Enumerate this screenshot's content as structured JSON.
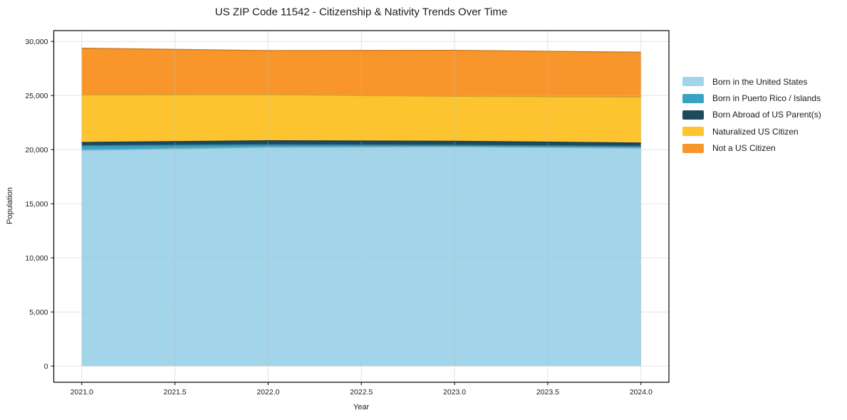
{
  "chart_data": {
    "type": "area",
    "stacked": true,
    "title": "US ZIP Code 11542 - Citizenship & Nativity Trends Over Time",
    "xlabel": "Year",
    "ylabel": "Population",
    "x": [
      2021,
      2022,
      2023,
      2024
    ],
    "series": [
      {
        "name": "Born in the United States",
        "color": "#a2d4ea",
        "values": [
          19950,
          20220,
          20260,
          20140
        ]
      },
      {
        "name": "Born in Puerto Rico / Islands",
        "color": "#3aa3c4",
        "values": [
          400,
          225,
          135,
          150
        ]
      },
      {
        "name": "Born Abroad of US Parent(s)",
        "color": "#1f4a5e",
        "values": [
          310,
          370,
          375,
          310
        ]
      },
      {
        "name": "Naturalized US Citizen",
        "color": "#fdc42f",
        "values": [
          4410,
          4275,
          4165,
          4270
        ]
      },
      {
        "name": "Not a US Citizen",
        "color": "#f8962b",
        "values": [
          4300,
          4060,
          4240,
          4130
        ]
      }
    ],
    "xticks": [
      2021.0,
      2021.5,
      2022.0,
      2022.5,
      2023.0,
      2023.5,
      2024.0
    ],
    "yticks": [
      0,
      5000,
      10000,
      15000,
      20000,
      25000,
      30000
    ],
    "xlim": [
      2020.85,
      2024.15
    ],
    "ylim": [
      -1500,
      31000
    ],
    "grid": true,
    "legend_position": "right-outside"
  }
}
